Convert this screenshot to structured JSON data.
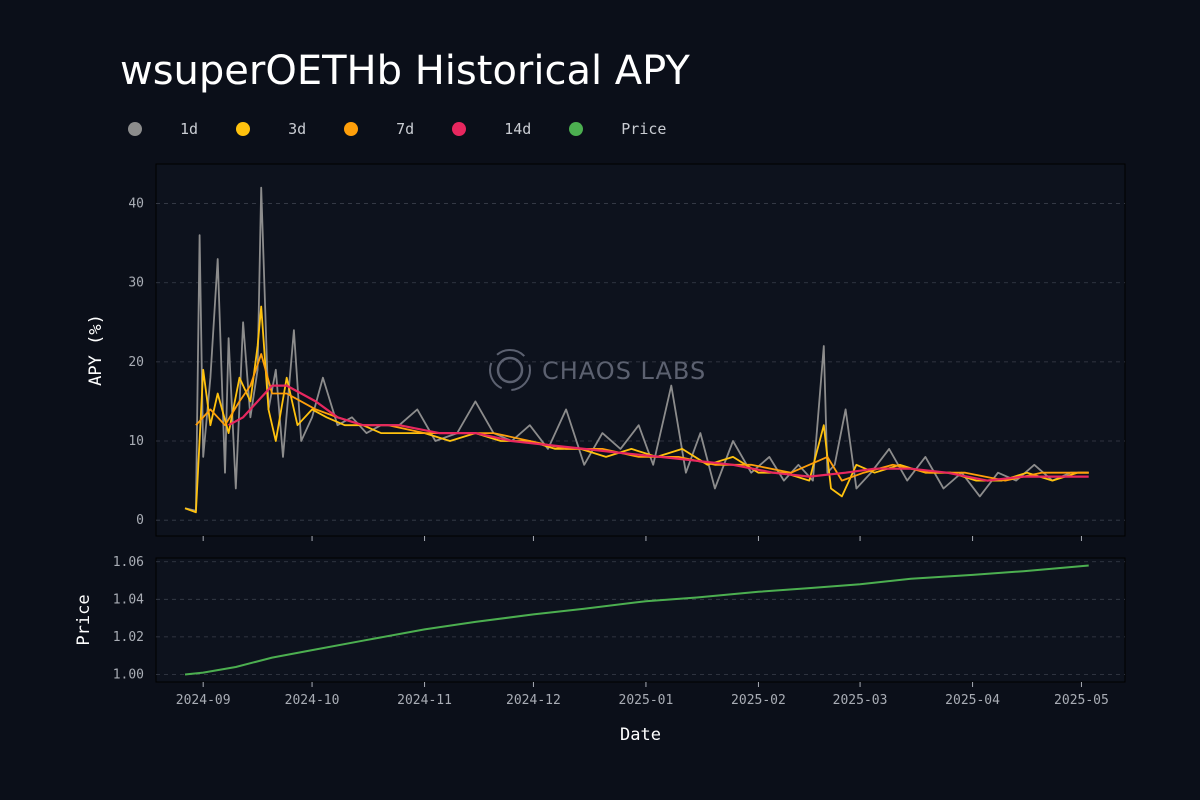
{
  "title": "wsuperOETHb Historical APY",
  "watermark": "CHAOS LABS",
  "legend": [
    {
      "label": "1d",
      "color": "#8c8c8c"
    },
    {
      "label": "3d",
      "color": "#ffc20e"
    },
    {
      "label": "7d",
      "color": "#ff9f0a"
    },
    {
      "label": "14d",
      "color": "#e8275f"
    },
    {
      "label": "Price",
      "color": "#4caf50"
    }
  ],
  "chart_data": [
    {
      "type": "line",
      "ylabel": "APY (%)",
      "ylim": [
        -2,
        45
      ],
      "yticks": [
        0,
        10,
        20,
        30,
        40
      ],
      "grid": true,
      "series": [
        {
          "name": "1d",
          "color": "#8c8c8c",
          "x": [
            "2024-08-27",
            "2024-08-30",
            "2024-08-31",
            "2024-09-01",
            "2024-09-03",
            "2024-09-05",
            "2024-09-07",
            "2024-09-08",
            "2024-09-10",
            "2024-09-12",
            "2024-09-14",
            "2024-09-16",
            "2024-09-17",
            "2024-09-19",
            "2024-09-21",
            "2024-09-23",
            "2024-09-26",
            "2024-09-28",
            "2024-10-01",
            "2024-10-04",
            "2024-10-08",
            "2024-10-12",
            "2024-10-16",
            "2024-10-20",
            "2024-10-25",
            "2024-10-30",
            "2024-11-04",
            "2024-11-10",
            "2024-11-15",
            "2024-11-20",
            "2024-11-25",
            "2024-11-30",
            "2024-12-05",
            "2024-12-10",
            "2024-12-15",
            "2024-12-20",
            "2024-12-25",
            "2024-12-30",
            "2025-01-03",
            "2025-01-08",
            "2025-01-12",
            "2025-01-16",
            "2025-01-20",
            "2025-01-25",
            "2025-01-30",
            "2025-02-04",
            "2025-02-08",
            "2025-02-12",
            "2025-02-16",
            "2025-02-19",
            "2025-02-20",
            "2025-02-22",
            "2025-02-25",
            "2025-02-28",
            "2025-03-04",
            "2025-03-09",
            "2025-03-14",
            "2025-03-19",
            "2025-03-24",
            "2025-03-29",
            "2025-04-03",
            "2025-04-08",
            "2025-04-13",
            "2025-04-18",
            "2025-04-23",
            "2025-04-28",
            "2025-05-03"
          ],
          "y": [
            1.5,
            1.2,
            36,
            8,
            18,
            33,
            6,
            23,
            4,
            25,
            13,
            19,
            42,
            14,
            19,
            8,
            24,
            10,
            13,
            18,
            12,
            13,
            11,
            12,
            12,
            14,
            10,
            11,
            15,
            11,
            10,
            12,
            9,
            14,
            7,
            11,
            9,
            12,
            7,
            17,
            6,
            11,
            4,
            10,
            6,
            8,
            5,
            7,
            5,
            22,
            6,
            7,
            14,
            4,
            6,
            9,
            5,
            8,
            4,
            6,
            3,
            6,
            5,
            7,
            5,
            6,
            6
          ]
        },
        {
          "name": "3d",
          "color": "#ffc20e",
          "x": [
            "2024-08-27",
            "2024-08-30",
            "2024-09-01",
            "2024-09-03",
            "2024-09-05",
            "2024-09-08",
            "2024-09-11",
            "2024-09-14",
            "2024-09-16",
            "2024-09-17",
            "2024-09-19",
            "2024-09-21",
            "2024-09-24",
            "2024-09-27",
            "2024-10-01",
            "2024-10-05",
            "2024-10-10",
            "2024-10-15",
            "2024-10-20",
            "2024-10-25",
            "2024-11-01",
            "2024-11-08",
            "2024-11-15",
            "2024-11-22",
            "2024-11-30",
            "2024-12-07",
            "2024-12-14",
            "2024-12-21",
            "2024-12-28",
            "2025-01-04",
            "2025-01-11",
            "2025-01-18",
            "2025-01-25",
            "2025-02-01",
            "2025-02-08",
            "2025-02-15",
            "2025-02-19",
            "2025-02-21",
            "2025-02-24",
            "2025-02-28",
            "2025-03-05",
            "2025-03-12",
            "2025-03-19",
            "2025-03-26",
            "2025-04-02",
            "2025-04-09",
            "2025-04-16",
            "2025-04-23",
            "2025-04-30",
            "2025-05-03"
          ],
          "y": [
            1.5,
            1,
            19,
            12,
            16,
            11,
            18,
            15,
            22,
            27,
            14,
            10,
            18,
            12,
            14,
            13,
            12,
            12,
            11,
            11,
            11,
            10,
            11,
            10,
            10,
            9,
            9,
            8,
            9,
            8,
            9,
            7,
            8,
            6,
            6,
            5,
            12,
            4,
            3,
            7,
            6,
            7,
            6,
            6,
            5,
            5,
            6,
            5,
            6,
            6
          ]
        },
        {
          "name": "7d",
          "color": "#ff9f0a",
          "x": [
            "2024-08-30",
            "2024-09-03",
            "2024-09-07",
            "2024-09-11",
            "2024-09-14",
            "2024-09-17",
            "2024-09-20",
            "2024-09-24",
            "2024-09-28",
            "2024-10-02",
            "2024-10-08",
            "2024-10-15",
            "2024-10-22",
            "2024-11-01",
            "2024-11-10",
            "2024-11-20",
            "2024-11-30",
            "2024-12-10",
            "2024-12-20",
            "2024-12-30",
            "2025-01-10",
            "2025-01-20",
            "2025-01-30",
            "2025-02-10",
            "2025-02-20",
            "2025-02-24",
            "2025-03-02",
            "2025-03-10",
            "2025-03-20",
            "2025-03-30",
            "2025-04-10",
            "2025-04-20",
            "2025-05-03"
          ],
          "y": [
            12,
            14,
            12,
            15,
            17,
            21,
            16,
            16,
            15,
            14,
            13,
            12,
            12,
            11,
            11,
            11,
            10,
            9,
            9,
            8,
            8,
            7,
            7,
            6,
            8,
            5,
            6,
            7,
            6,
            6,
            5,
            6,
            6
          ]
        },
        {
          "name": "14d",
          "color": "#e8275f",
          "x": [
            "2024-09-08",
            "2024-09-12",
            "2024-09-16",
            "2024-09-20",
            "2024-09-24",
            "2024-09-28",
            "2024-10-02",
            "2024-10-08",
            "2024-10-15",
            "2024-10-25",
            "2024-11-05",
            "2024-11-15",
            "2024-11-25",
            "2024-12-05",
            "2024-12-15",
            "2024-12-25",
            "2025-01-05",
            "2025-01-15",
            "2025-01-25",
            "2025-02-05",
            "2025-02-15",
            "2025-02-25",
            "2025-03-05",
            "2025-03-15",
            "2025-03-25",
            "2025-04-05",
            "2025-04-15",
            "2025-04-25",
            "2025-05-03"
          ],
          "y": [
            12,
            13,
            15,
            17,
            17,
            16,
            15,
            13,
            12,
            12,
            11,
            11,
            10,
            9.5,
            9,
            8.5,
            8,
            7.5,
            7,
            6,
            5.5,
            6,
            6.5,
            6.5,
            6,
            5,
            5.5,
            5.5,
            5.5
          ]
        }
      ]
    },
    {
      "type": "line",
      "xlabel": "Date",
      "ylabel": "Price",
      "ylim": [
        0.996,
        1.062
      ],
      "yticks": [
        1.0,
        1.02,
        1.04,
        1.06
      ],
      "xticks": [
        "2024-09",
        "2024-10",
        "2024-11",
        "2024-12",
        "2025-01",
        "2025-02",
        "2025-03",
        "2025-04",
        "2025-05"
      ],
      "grid": true,
      "series": [
        {
          "name": "Price",
          "color": "#4caf50",
          "x": [
            "2024-08-27",
            "2024-09-01",
            "2024-09-10",
            "2024-09-20",
            "2024-10-01",
            "2024-10-15",
            "2024-11-01",
            "2024-11-15",
            "2024-12-01",
            "2024-12-15",
            "2025-01-01",
            "2025-01-15",
            "2025-02-01",
            "2025-02-15",
            "2025-03-01",
            "2025-03-15",
            "2025-04-01",
            "2025-04-15",
            "2025-05-03"
          ],
          "y": [
            1.0,
            1.001,
            1.004,
            1.009,
            1.013,
            1.018,
            1.024,
            1.028,
            1.032,
            1.035,
            1.039,
            1.041,
            1.044,
            1.046,
            1.048,
            1.051,
            1.053,
            1.055,
            1.058
          ]
        }
      ]
    }
  ]
}
